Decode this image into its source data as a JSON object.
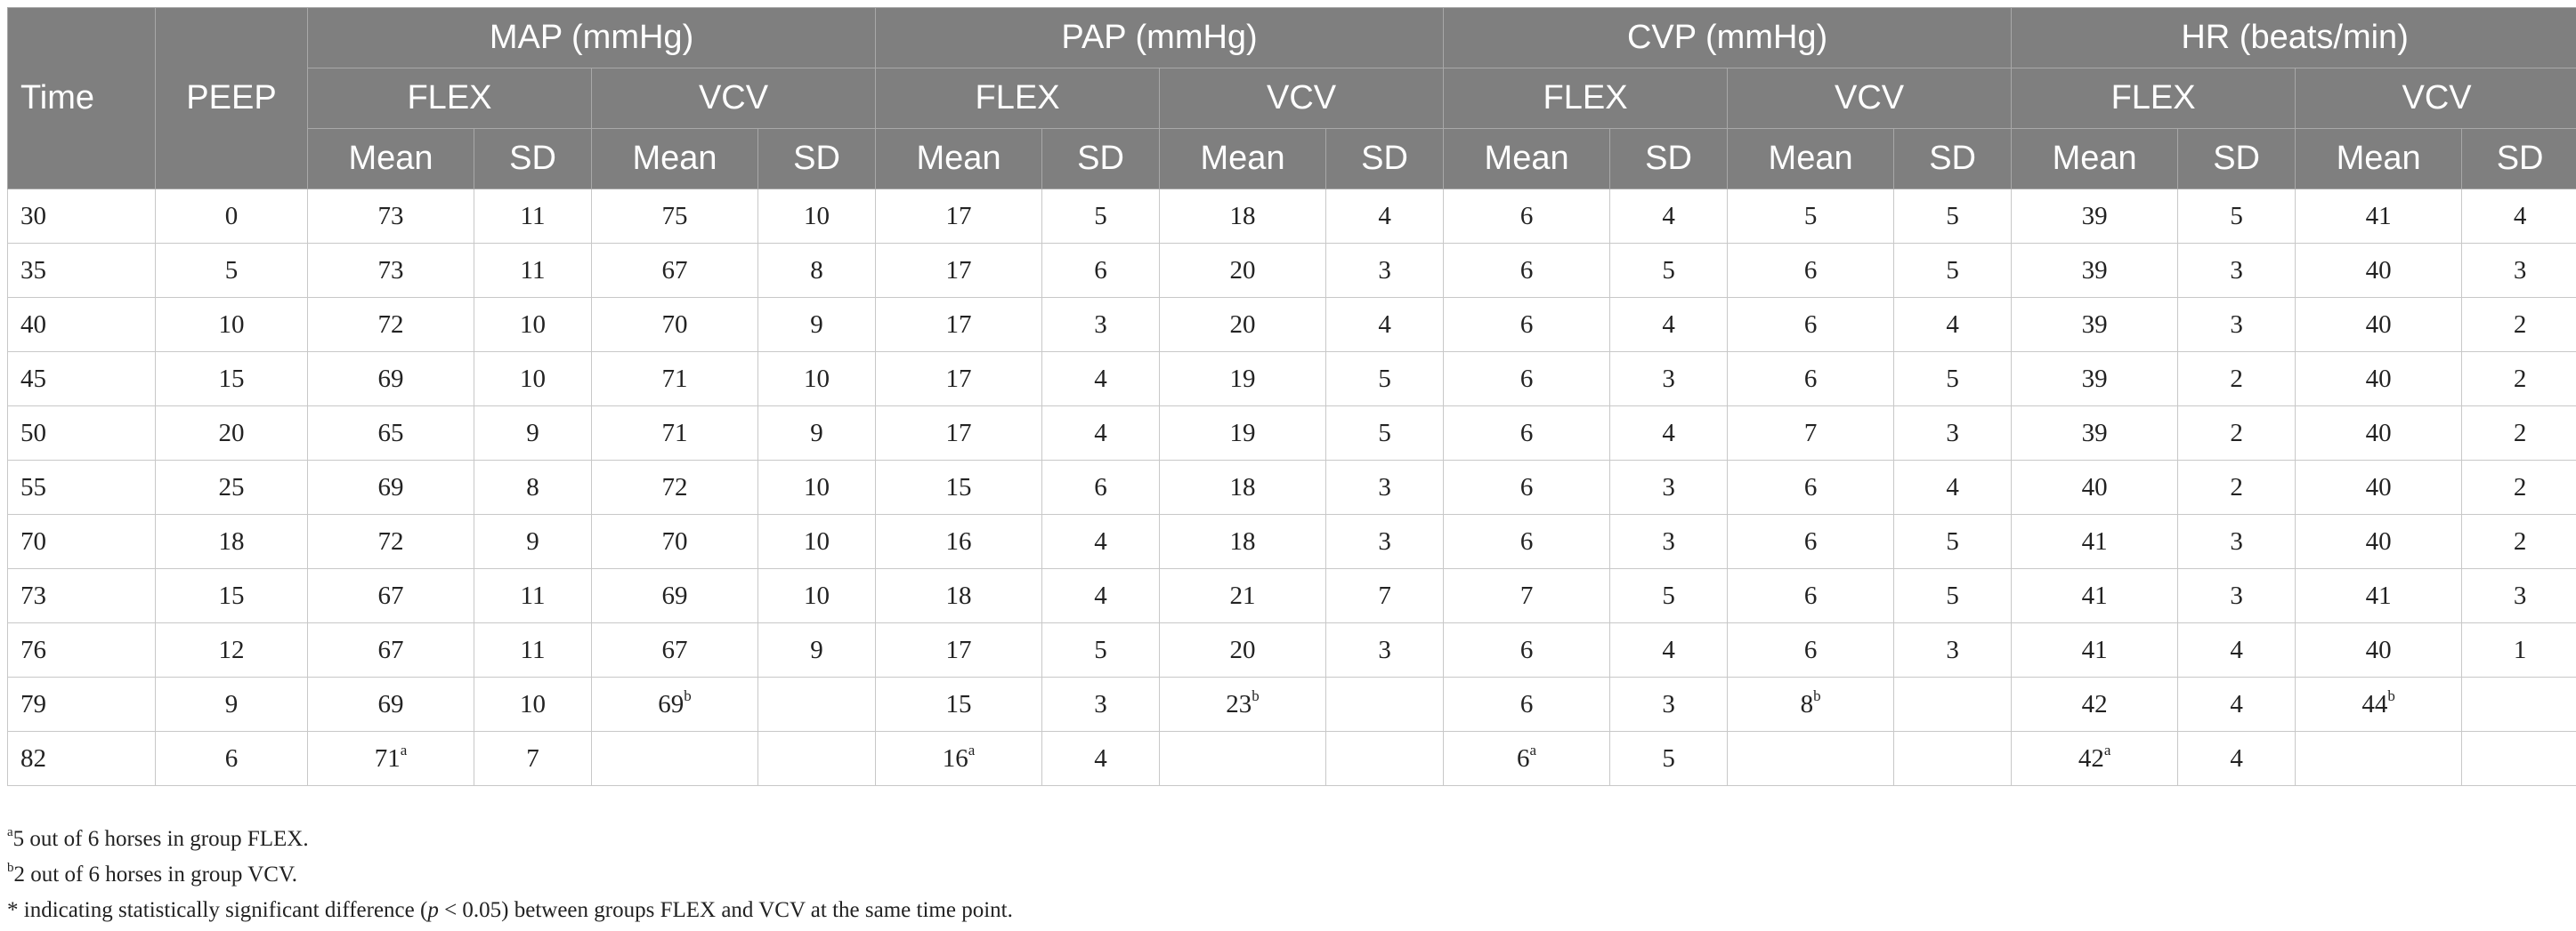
{
  "header": {
    "time": "Time",
    "peep": "PEEP",
    "groups": [
      "MAP (mmHg)",
      "PAP (mmHg)",
      "CVP (mmHg)",
      "HR (beats/min)"
    ],
    "subgroups": [
      "FLEX",
      "VCV"
    ],
    "stats": [
      "Mean",
      "SD"
    ]
  },
  "rows": [
    {
      "time": "30",
      "peep": "0",
      "map_flex_mean": "73",
      "map_flex_sd": "11",
      "map_vcv_mean": "75",
      "map_vcv_sd": "10",
      "pap_flex_mean": "17",
      "pap_flex_sd": "5",
      "pap_vcv_mean": "18",
      "pap_vcv_sd": "4",
      "cvp_flex_mean": "6",
      "cvp_flex_sd": "4",
      "cvp_vcv_mean": "5",
      "cvp_vcv_sd": "5",
      "hr_flex_mean": "39",
      "hr_flex_sd": "5",
      "hr_vcv_mean": "41",
      "hr_vcv_sd": "4"
    },
    {
      "time": "35",
      "peep": "5",
      "map_flex_mean": "73",
      "map_flex_sd": "11",
      "map_vcv_mean": "67",
      "map_vcv_sd": "8",
      "pap_flex_mean": "17",
      "pap_flex_sd": "6",
      "pap_vcv_mean": "20",
      "pap_vcv_sd": "3",
      "cvp_flex_mean": "6",
      "cvp_flex_sd": "5",
      "cvp_vcv_mean": "6",
      "cvp_vcv_sd": "5",
      "hr_flex_mean": "39",
      "hr_flex_sd": "3",
      "hr_vcv_mean": "40",
      "hr_vcv_sd": "3"
    },
    {
      "time": "40",
      "peep": "10",
      "map_flex_mean": "72",
      "map_flex_sd": "10",
      "map_vcv_mean": "70",
      "map_vcv_sd": "9",
      "pap_flex_mean": "17",
      "pap_flex_sd": "3",
      "pap_vcv_mean": "20",
      "pap_vcv_sd": "4",
      "cvp_flex_mean": "6",
      "cvp_flex_sd": "4",
      "cvp_vcv_mean": "6",
      "cvp_vcv_sd": "4",
      "hr_flex_mean": "39",
      "hr_flex_sd": "3",
      "hr_vcv_mean": "40",
      "hr_vcv_sd": "2"
    },
    {
      "time": "45",
      "peep": "15",
      "map_flex_mean": "69",
      "map_flex_sd": "10",
      "map_vcv_mean": "71",
      "map_vcv_sd": "10",
      "pap_flex_mean": "17",
      "pap_flex_sd": "4",
      "pap_vcv_mean": "19",
      "pap_vcv_sd": "5",
      "cvp_flex_mean": "6",
      "cvp_flex_sd": "3",
      "cvp_vcv_mean": "6",
      "cvp_vcv_sd": "5",
      "hr_flex_mean": "39",
      "hr_flex_sd": "2",
      "hr_vcv_mean": "40",
      "hr_vcv_sd": "2"
    },
    {
      "time": "50",
      "peep": "20",
      "map_flex_mean": "65",
      "map_flex_sd": "9",
      "map_vcv_mean": "71",
      "map_vcv_sd": "9",
      "pap_flex_mean": "17",
      "pap_flex_sd": "4",
      "pap_vcv_mean": "19",
      "pap_vcv_sd": "5",
      "cvp_flex_mean": "6",
      "cvp_flex_sd": "4",
      "cvp_vcv_mean": "7",
      "cvp_vcv_sd": "3",
      "hr_flex_mean": "39",
      "hr_flex_sd": "2",
      "hr_vcv_mean": "40",
      "hr_vcv_sd": "2"
    },
    {
      "time": "55",
      "peep": "25",
      "map_flex_mean": "69",
      "map_flex_sd": "8",
      "map_vcv_mean": "72",
      "map_vcv_sd": "10",
      "pap_flex_mean": "15",
      "pap_flex_sd": "6",
      "pap_vcv_mean": "18",
      "pap_vcv_sd": "3",
      "cvp_flex_mean": "6",
      "cvp_flex_sd": "3",
      "cvp_vcv_mean": "6",
      "cvp_vcv_sd": "4",
      "hr_flex_mean": "40",
      "hr_flex_sd": "2",
      "hr_vcv_mean": "40",
      "hr_vcv_sd": "2"
    },
    {
      "time": "70",
      "peep": "18",
      "map_flex_mean": "72",
      "map_flex_sd": "9",
      "map_vcv_mean": "70",
      "map_vcv_sd": "10",
      "pap_flex_mean": "16",
      "pap_flex_sd": "4",
      "pap_vcv_mean": "18",
      "pap_vcv_sd": "3",
      "cvp_flex_mean": "6",
      "cvp_flex_sd": "3",
      "cvp_vcv_mean": "6",
      "cvp_vcv_sd": "5",
      "hr_flex_mean": "41",
      "hr_flex_sd": "3",
      "hr_vcv_mean": "40",
      "hr_vcv_sd": "2"
    },
    {
      "time": "73",
      "peep": "15",
      "map_flex_mean": "67",
      "map_flex_sd": "11",
      "map_vcv_mean": "69",
      "map_vcv_sd": "10",
      "pap_flex_mean": "18",
      "pap_flex_sd": "4",
      "pap_vcv_mean": "21",
      "pap_vcv_sd": "7",
      "cvp_flex_mean": "7",
      "cvp_flex_sd": "5",
      "cvp_vcv_mean": "6",
      "cvp_vcv_sd": "5",
      "hr_flex_mean": "41",
      "hr_flex_sd": "3",
      "hr_vcv_mean": "41",
      "hr_vcv_sd": "3"
    },
    {
      "time": "76",
      "peep": "12",
      "map_flex_mean": "67",
      "map_flex_sd": "11",
      "map_vcv_mean": "67",
      "map_vcv_sd": "9",
      "pap_flex_mean": "17",
      "pap_flex_sd": "5",
      "pap_vcv_mean": "20",
      "pap_vcv_sd": "3",
      "cvp_flex_mean": "6",
      "cvp_flex_sd": "4",
      "cvp_vcv_mean": "6",
      "cvp_vcv_sd": "3",
      "hr_flex_mean": "41",
      "hr_flex_sd": "4",
      "hr_vcv_mean": "40",
      "hr_vcv_sd": "1"
    },
    {
      "time": "79",
      "peep": "9",
      "map_flex_mean": "69",
      "map_flex_sd": "10",
      "map_vcv_mean": "69",
      "map_vcv_mean_sup": "b",
      "map_vcv_sd": "",
      "pap_flex_mean": "15",
      "pap_flex_sd": "3",
      "pap_vcv_mean": "23",
      "pap_vcv_mean_sup": "b",
      "pap_vcv_sd": "",
      "cvp_flex_mean": "6",
      "cvp_flex_sd": "3",
      "cvp_vcv_mean": "8",
      "cvp_vcv_mean_sup": "b",
      "cvp_vcv_sd": "",
      "hr_flex_mean": "42",
      "hr_flex_sd": "4",
      "hr_vcv_mean": "44",
      "hr_vcv_mean_sup": "b",
      "hr_vcv_sd": ""
    },
    {
      "time": "82",
      "peep": "6",
      "map_flex_mean": "71",
      "map_flex_mean_sup": "a",
      "map_flex_sd": "7",
      "map_vcv_mean": "",
      "map_vcv_sd": "",
      "pap_flex_mean": "16",
      "pap_flex_mean_sup": "a",
      "pap_flex_sd": "4",
      "pap_vcv_mean": "",
      "pap_vcv_sd": "",
      "cvp_flex_mean": "6",
      "cvp_flex_mean_sup": "a",
      "cvp_flex_sd": "5",
      "cvp_vcv_mean": "",
      "cvp_vcv_sd": "",
      "hr_flex_mean": "42",
      "hr_flex_mean_sup": "a",
      "hr_flex_sd": "4",
      "hr_vcv_mean": "",
      "hr_vcv_sd": ""
    }
  ],
  "footnotes": {
    "a_sup": "a",
    "a_text": "5 out of 6 horses in group FLEX.",
    "b_sup": "b",
    "b_text": "2 out of 6 horses in group VCV.",
    "star_pre": "* indicating statistically significant difference (",
    "star_p": "p",
    "star_post": " < 0.05) between groups FLEX and VCV at the same time point."
  }
}
